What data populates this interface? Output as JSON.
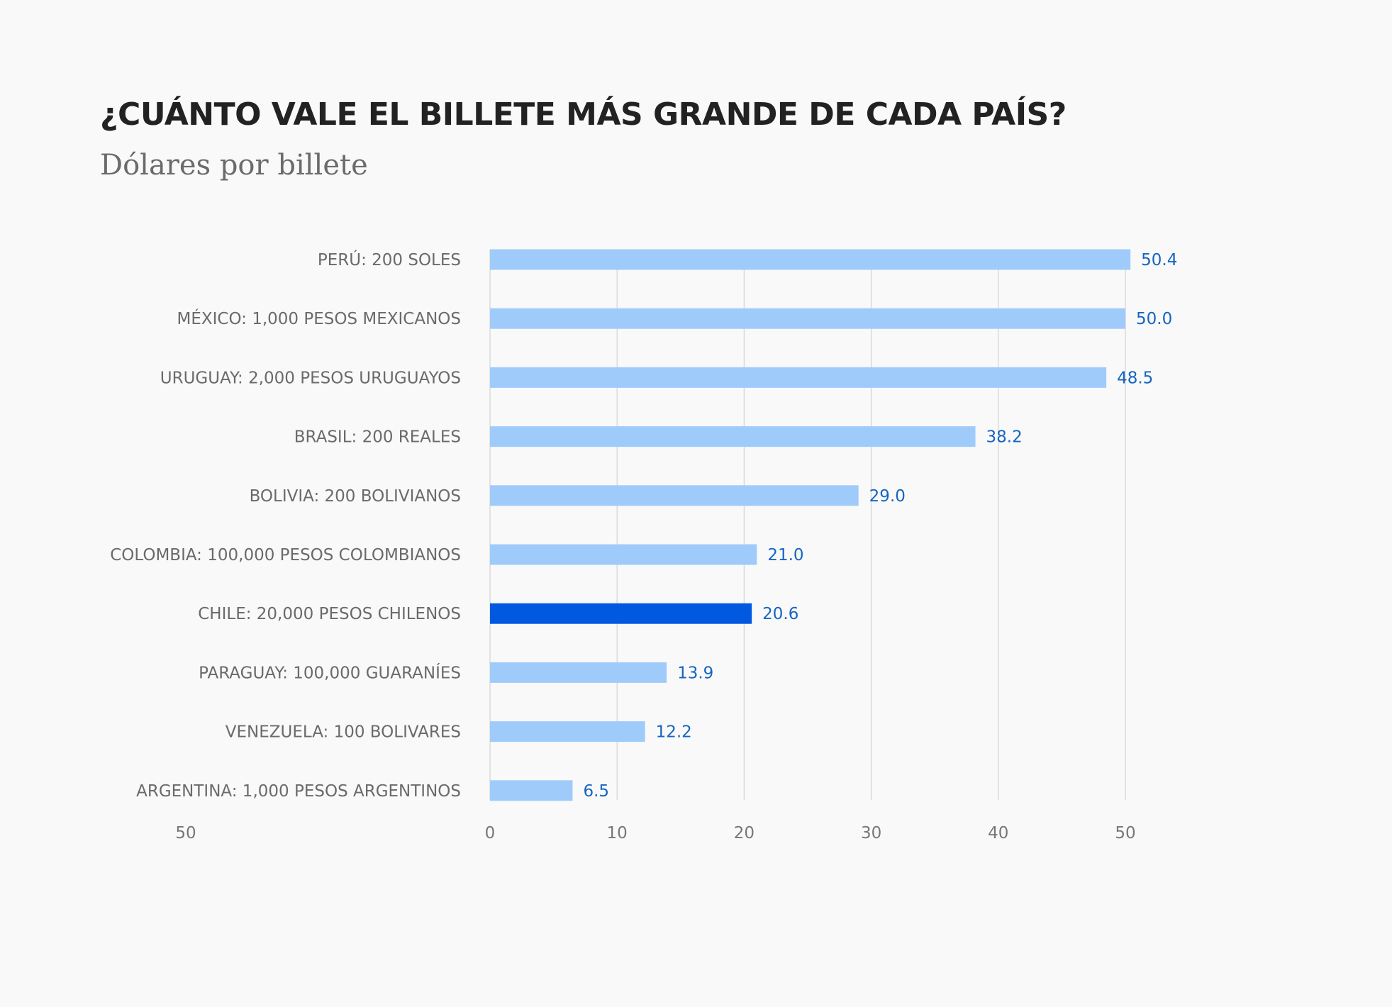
{
  "chart_data": {
    "type": "bar",
    "orientation": "horizontal",
    "title": "¿CUÁNTO VALE EL BILLETE MÁS GRANDE DE CADA PAÍS?",
    "subtitle": "Dólares por billete",
    "categories": [
      "PERÚ: 200 SOLES",
      "MÉXICO: 1,000 PESOS MEXICANOS",
      "URUGUAY: 2,000 PESOS URUGUAYOS",
      "BRASIL: 200 REALES",
      "BOLIVIA: 200 BOLIVIANOS",
      "COLOMBIA: 100,000 PESOS COLOMBIANOS",
      "CHILE: 20,000 PESOS CHILENOS",
      "PARAGUAY: 100,000 GUARANÍES",
      "VENEZUELA: 100 BOLIVARES",
      "ARGENTINA: 1,000 PESOS ARGENTINOS"
    ],
    "values": [
      50.4,
      50.0,
      48.5,
      38.2,
      29.0,
      21.0,
      20.6,
      13.9,
      12.2,
      6.5
    ],
    "value_labels": [
      "50.4",
      "50.0",
      "48.5",
      "38.2",
      "29.0",
      "21.0",
      "20.6",
      "13.9",
      "12.2",
      "6.5"
    ],
    "highlight": "CHILE: 20,000 PESOS CHILENOS",
    "xlim": [
      0,
      50
    ],
    "x_ticks": [
      0,
      10,
      20,
      30,
      40,
      50
    ],
    "x_tick_labels": [
      "0",
      "10",
      "20",
      "30",
      "40",
      "50"
    ],
    "stray_tick_label": "50",
    "grid": true,
    "xlabel": "",
    "ylabel": ""
  },
  "colors": {
    "background": "#f9f9f9",
    "bar": "#9fcbfb",
    "bar_highlight": "#0059de",
    "value_text": "#1565c0",
    "gridline": "#d6d6d6"
  }
}
